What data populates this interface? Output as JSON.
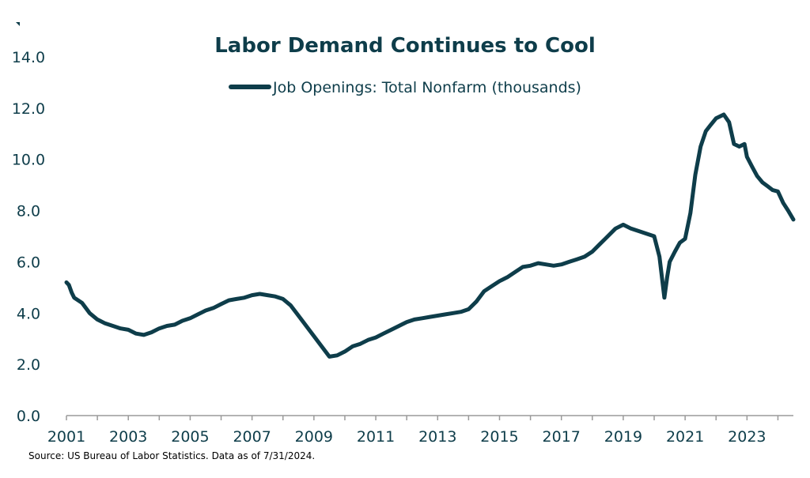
{
  "chart_data": {
    "type": "line",
    "title": "Labor Demand Continues to Cool",
    "xlabel": "",
    "ylabel": "",
    "ylim": [
      0,
      14
    ],
    "xlim": [
      2001,
      2024.5
    ],
    "y_ticks": [
      "0.0",
      "2.0",
      "4.0",
      "6.0",
      "8.0",
      "10.0",
      "12.0",
      "14.0"
    ],
    "x_ticks": [
      "2001",
      "2003",
      "2005",
      "2007",
      "2009",
      "2011",
      "2013",
      "2015",
      "2017",
      "2019",
      "2021",
      "2023"
    ],
    "grid": false,
    "legend_position": "top-center",
    "color": "#0e3d4a",
    "series": [
      {
        "name": "Job Openings: Total Nonfarm (thousands)",
        "x": [
          2001.0,
          2001.08,
          2001.17,
          2001.25,
          2001.5,
          2001.75,
          2002.0,
          2002.25,
          2002.5,
          2002.75,
          2003.0,
          2003.25,
          2003.5,
          2003.75,
          2004.0,
          2004.25,
          2004.5,
          2004.75,
          2005.0,
          2005.25,
          2005.5,
          2005.75,
          2006.0,
          2006.25,
          2006.5,
          2006.75,
          2007.0,
          2007.25,
          2007.5,
          2007.75,
          2008.0,
          2008.25,
          2008.5,
          2008.75,
          2009.0,
          2009.25,
          2009.5,
          2009.75,
          2010.0,
          2010.25,
          2010.5,
          2010.75,
          2011.0,
          2011.25,
          2011.5,
          2011.75,
          2012.0,
          2012.25,
          2012.5,
          2012.75,
          2013.0,
          2013.25,
          2013.5,
          2013.75,
          2014.0,
          2014.25,
          2014.5,
          2014.75,
          2015.0,
          2015.25,
          2015.5,
          2015.75,
          2016.0,
          2016.25,
          2016.5,
          2016.75,
          2017.0,
          2017.25,
          2017.5,
          2017.75,
          2018.0,
          2018.25,
          2018.5,
          2018.75,
          2019.0,
          2019.25,
          2019.5,
          2019.75,
          2020.0,
          2020.17,
          2020.33,
          2020.42,
          2020.5,
          2020.67,
          2020.83,
          2021.0,
          2021.17,
          2021.33,
          2021.5,
          2021.67,
          2021.83,
          2022.0,
          2022.25,
          2022.42,
          2022.58,
          2022.75,
          2022.92,
          2023.0,
          2023.17,
          2023.33,
          2023.5,
          2023.67,
          2023.83,
          2024.0,
          2024.17,
          2024.33,
          2024.5
        ],
        "values": [
          5.2,
          5.1,
          4.8,
          4.6,
          4.4,
          4.0,
          3.75,
          3.6,
          3.5,
          3.4,
          3.35,
          3.2,
          3.15,
          3.25,
          3.4,
          3.5,
          3.55,
          3.7,
          3.8,
          3.95,
          4.1,
          4.2,
          4.35,
          4.5,
          4.55,
          4.6,
          4.7,
          4.75,
          4.7,
          4.65,
          4.55,
          4.3,
          3.9,
          3.5,
          3.1,
          2.7,
          2.3,
          2.35,
          2.5,
          2.7,
          2.8,
          2.95,
          3.05,
          3.2,
          3.35,
          3.5,
          3.65,
          3.75,
          3.8,
          3.85,
          3.9,
          3.95,
          4.0,
          4.05,
          4.15,
          4.45,
          4.85,
          5.05,
          5.25,
          5.4,
          5.6,
          5.8,
          5.85,
          5.95,
          5.9,
          5.85,
          5.9,
          6.0,
          6.1,
          6.2,
          6.4,
          6.7,
          7.0,
          7.3,
          7.45,
          7.3,
          7.2,
          7.1,
          7.0,
          6.2,
          4.6,
          5.4,
          6.0,
          6.4,
          6.75,
          6.9,
          7.9,
          9.4,
          10.5,
          11.1,
          11.35,
          11.6,
          11.75,
          11.45,
          10.6,
          10.5,
          10.6,
          10.1,
          9.7,
          9.35,
          9.1,
          8.95,
          8.8,
          8.75,
          8.3,
          8.0,
          7.65
        ]
      }
    ],
    "source": "Source: US Bureau of Labor Statistics. Data as of 7/31/2024."
  }
}
